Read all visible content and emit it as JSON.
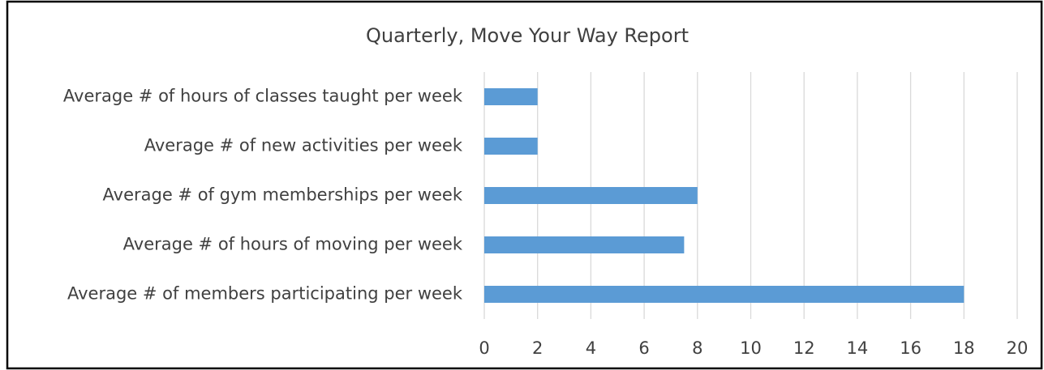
{
  "chart_data": {
    "type": "hbar",
    "title": "Quarterly, Move Your Way Report",
    "categories": [
      "Average # of hours of classes taught per week",
      "Average # of new activities per week",
      "Average # of gym memberships per week",
      "Average # of hours of moving per week",
      "Average # of members participating per week"
    ],
    "values": [
      2,
      2,
      8,
      7.5,
      18
    ],
    "color": "#5b9bd5",
    "xlim": [
      0,
      20
    ],
    "xticks": [
      0,
      2,
      4,
      6,
      8,
      10,
      12,
      14,
      16,
      18,
      20
    ],
    "grid": true
  }
}
